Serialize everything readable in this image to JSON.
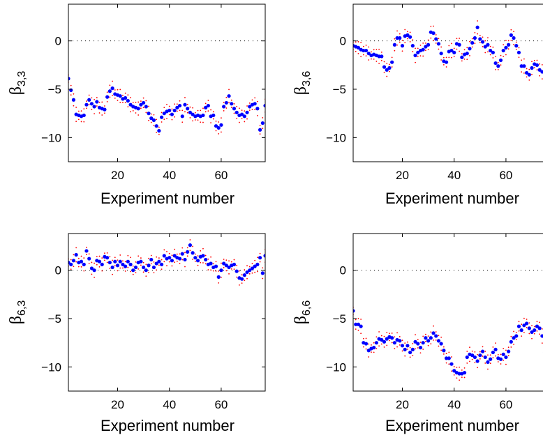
{
  "chart_data": [
    {
      "type": "scatter",
      "panel": "top-left",
      "ylabel": {
        "symbol": "β",
        "subscript": "3,3"
      },
      "xlabel": "Experiment number",
      "xlim": [
        1,
        77
      ],
      "ylim": [
        -12.5,
        3.8
      ],
      "xticks": [
        20,
        40,
        60
      ],
      "yticks": [
        0,
        -5,
        -10
      ],
      "reference_line": 0,
      "series": [
        {
          "role": "estimate",
          "color": "#0000ff",
          "marker": "dot",
          "x": [
            1,
            2,
            3,
            4,
            5,
            6,
            7,
            8,
            9,
            10,
            11,
            12,
            13,
            14,
            15,
            16,
            17,
            18,
            19,
            20,
            21,
            22,
            23,
            24,
            25,
            26,
            27,
            28,
            29,
            30,
            31,
            32,
            33,
            34,
            35,
            36,
            37,
            38,
            39,
            40,
            41,
            42,
            43,
            44,
            45,
            46,
            47,
            48,
            49,
            50,
            51,
            52,
            53,
            54,
            55,
            56,
            57,
            58,
            59,
            60,
            61,
            62,
            63,
            64,
            65,
            66,
            67,
            68,
            69,
            70,
            71,
            72,
            73,
            74,
            75,
            76,
            77
          ],
          "y": [
            -3.9,
            -5.1,
            -6.1,
            -7.6,
            -7.7,
            -7.8,
            -7.7,
            -6.6,
            -6.1,
            -6.5,
            -6.8,
            -6.3,
            -6.9,
            -7.0,
            -7.1,
            -5.8,
            -5.2,
            -4.9,
            -5.5,
            -5.6,
            -5.7,
            -6.0,
            -5.9,
            -6.2,
            -6.6,
            -6.8,
            -6.9,
            -7.0,
            -6.6,
            -6.4,
            -6.8,
            -7.5,
            -8.0,
            -8.2,
            -8.8,
            -9.3,
            -7.9,
            -7.5,
            -7.3,
            -7.2,
            -7.6,
            -7.2,
            -6.9,
            -6.7,
            -7.8,
            -6.6,
            -7.0,
            -7.4,
            -7.6,
            -7.8,
            -7.7,
            -7.8,
            -7.7,
            -6.9,
            -6.7,
            -7.8,
            -7.7,
            -8.8,
            -9.0,
            -8.7,
            -6.8,
            -6.4,
            -5.7,
            -6.5,
            -7.0,
            -7.4,
            -7.7,
            -7.6,
            -7.8,
            -7.4,
            -6.8,
            -6.6,
            -6.5,
            -7.0,
            -9.2,
            -8.5,
            -6.7
          ]
        },
        {
          "role": "bounds",
          "color": "#ff0000",
          "marker": "point",
          "halfwidth": 0.55
        }
      ]
    },
    {
      "type": "scatter",
      "panel": "top-right",
      "ylabel": {
        "symbol": "β",
        "subscript": "3,6"
      },
      "xlabel": "Experiment number",
      "xlim": [
        1,
        77
      ],
      "ylim": [
        -12.5,
        3.8
      ],
      "xticks": [
        20,
        40,
        60
      ],
      "yticks": [
        0,
        -5,
        -10
      ],
      "reference_line": 0,
      "series": [
        {
          "role": "estimate",
          "color": "#0000ff",
          "marker": "dot",
          "x": [
            1,
            2,
            3,
            4,
            5,
            6,
            7,
            8,
            9,
            10,
            11,
            12,
            13,
            14,
            15,
            16,
            17,
            18,
            19,
            20,
            21,
            22,
            23,
            24,
            25,
            26,
            27,
            28,
            29,
            30,
            31,
            32,
            33,
            34,
            35,
            36,
            37,
            38,
            39,
            40,
            41,
            42,
            43,
            44,
            45,
            46,
            47,
            48,
            49,
            50,
            51,
            52,
            53,
            54,
            55,
            56,
            57,
            58,
            59,
            60,
            61,
            62,
            63,
            64,
            65,
            66,
            67,
            68,
            69,
            70,
            71,
            72,
            73,
            74,
            75,
            76,
            77
          ],
          "y": [
            -0.5,
            -0.6,
            -0.7,
            -0.9,
            -1.0,
            -1.0,
            -1.3,
            -1.5,
            -1.4,
            -1.5,
            -1.6,
            -1.6,
            -2.7,
            -3.0,
            -2.8,
            -2.2,
            -0.4,
            0.3,
            0.3,
            -0.5,
            0.5,
            0.6,
            0.4,
            -0.5,
            -1.5,
            -1.2,
            -1.0,
            -0.9,
            -0.6,
            -0.4,
            0.9,
            0.8,
            0.2,
            -0.3,
            -1.3,
            -2.1,
            -2.2,
            -1.1,
            -1.0,
            -1.2,
            -0.3,
            -0.4,
            -1.7,
            -1.4,
            -1.3,
            -0.8,
            -0.2,
            0.3,
            1.4,
            0.2,
            -0.1,
            -0.6,
            -0.4,
            -1.0,
            -1.2,
            -2.3,
            -2.6,
            -2.0,
            -1.0,
            -0.7,
            -0.4,
            0.6,
            0.3,
            -0.5,
            -1.2,
            -2.6,
            -2.6,
            -3.3,
            -3.5,
            -2.8,
            -2.4,
            -2.5,
            -3.0,
            -3.2,
            -3.0,
            -2.8,
            -2.6
          ]
        },
        {
          "role": "bounds",
          "color": "#ff0000",
          "marker": "point",
          "halfwidth": 0.55
        }
      ]
    },
    {
      "type": "scatter",
      "panel": "bottom-left",
      "ylabel": {
        "symbol": "β",
        "subscript": "6,3"
      },
      "xlabel": "Experiment number",
      "xlim": [
        1,
        77
      ],
      "ylim": [
        -12.5,
        3.8
      ],
      "xticks": [
        20,
        40,
        60
      ],
      "yticks": [
        0,
        -5,
        -10
      ],
      "reference_line": 0,
      "series": [
        {
          "role": "estimate",
          "color": "#0000ff",
          "marker": "dot",
          "x": [
            1,
            2,
            3,
            4,
            5,
            6,
            7,
            8,
            9,
            10,
            11,
            12,
            13,
            14,
            15,
            16,
            17,
            18,
            19,
            20,
            21,
            22,
            23,
            24,
            25,
            26,
            27,
            28,
            29,
            30,
            31,
            32,
            33,
            34,
            35,
            36,
            37,
            38,
            39,
            40,
            41,
            42,
            43,
            44,
            45,
            46,
            47,
            48,
            49,
            50,
            51,
            52,
            53,
            54,
            55,
            56,
            57,
            58,
            59,
            60,
            61,
            62,
            63,
            64,
            65,
            66,
            67,
            68,
            69,
            70,
            71,
            72,
            73,
            74,
            75,
            76,
            77
          ],
          "y": [
            0.8,
            0.6,
            1.0,
            1.6,
            0.8,
            0.9,
            0.6,
            2.0,
            1.2,
            0.2,
            0.0,
            1.0,
            0.9,
            0.6,
            1.4,
            1.3,
            0.8,
            0.3,
            0.9,
            0.5,
            0.9,
            0.6,
            0.4,
            0.9,
            0.6,
            0.0,
            0.3,
            0.8,
            0.9,
            0.3,
            0.0,
            0.5,
            1.1,
            0.3,
            0.7,
            0.9,
            0.6,
            1.5,
            1.2,
            1.3,
            1.0,
            1.5,
            1.3,
            1.2,
            1.7,
            1.1,
            1.9,
            2.6,
            1.8,
            1.3,
            1.0,
            1.4,
            1.5,
            1.1,
            0.6,
            0.7,
            0.3,
            0.4,
            -0.7,
            0.0,
            0.7,
            0.5,
            0.3,
            0.5,
            0.6,
            -0.1,
            -0.8,
            -0.9,
            -0.5,
            -0.2,
            0.0,
            0.2,
            0.4,
            0.6,
            1.3,
            -0.3,
            1.5
          ]
        },
        {
          "role": "bounds",
          "color": "#ff0000",
          "marker": "point",
          "halfwidth": 0.55
        }
      ]
    },
    {
      "type": "scatter",
      "panel": "bottom-right",
      "ylabel": {
        "symbol": "β",
        "subscript": "6,6"
      },
      "xlabel": "Experiment number",
      "xlim": [
        1,
        77
      ],
      "ylim": [
        -12.5,
        3.8
      ],
      "xticks": [
        20,
        40,
        60
      ],
      "yticks": [
        0,
        -5,
        -10
      ],
      "reference_line": 0,
      "series": [
        {
          "role": "estimate",
          "color": "#0000ff",
          "marker": "dot",
          "x": [
            1,
            2,
            3,
            4,
            5,
            6,
            7,
            8,
            9,
            10,
            11,
            12,
            13,
            14,
            15,
            16,
            17,
            18,
            19,
            20,
            21,
            22,
            23,
            24,
            25,
            26,
            27,
            28,
            29,
            30,
            31,
            32,
            33,
            34,
            35,
            36,
            37,
            38,
            39,
            40,
            41,
            42,
            43,
            44,
            45,
            46,
            47,
            48,
            49,
            50,
            51,
            52,
            53,
            54,
            55,
            56,
            57,
            58,
            59,
            60,
            61,
            62,
            63,
            64,
            65,
            66,
            67,
            68,
            69,
            70,
            71,
            72,
            73,
            74,
            75,
            76,
            77
          ],
          "y": [
            -4.2,
            -5.6,
            -5.6,
            -5.8,
            -7.5,
            -7.6,
            -8.3,
            -8.1,
            -8.0,
            -7.5,
            -7.1,
            -7.2,
            -7.4,
            -7.1,
            -6.9,
            -7.0,
            -7.5,
            -7.2,
            -7.3,
            -7.8,
            -8.2,
            -7.8,
            -8.5,
            -8.2,
            -7.4,
            -7.6,
            -8.0,
            -7.5,
            -7.0,
            -7.3,
            -7.0,
            -6.5,
            -6.8,
            -7.3,
            -7.6,
            -8.3,
            -9.1,
            -9.1,
            -9.7,
            -10.4,
            -10.6,
            -10.7,
            -10.7,
            -10.6,
            -9.0,
            -8.7,
            -8.8,
            -9.0,
            -9.4,
            -8.8,
            -8.4,
            -9.0,
            -9.5,
            -9.2,
            -8.5,
            -8.2,
            -9.1,
            -9.2,
            -8.7,
            -9.0,
            -8.4,
            -7.4,
            -7.0,
            -6.8,
            -5.8,
            -6.2,
            -5.7,
            -5.5,
            -6.0,
            -6.4,
            -6.2,
            -5.8,
            -6.0,
            -6.8,
            -8.5,
            -7.5,
            -7.6
          ]
        },
        {
          "role": "bounds",
          "color": "#ff0000",
          "marker": "point",
          "halfwidth": 0.55
        }
      ]
    }
  ]
}
